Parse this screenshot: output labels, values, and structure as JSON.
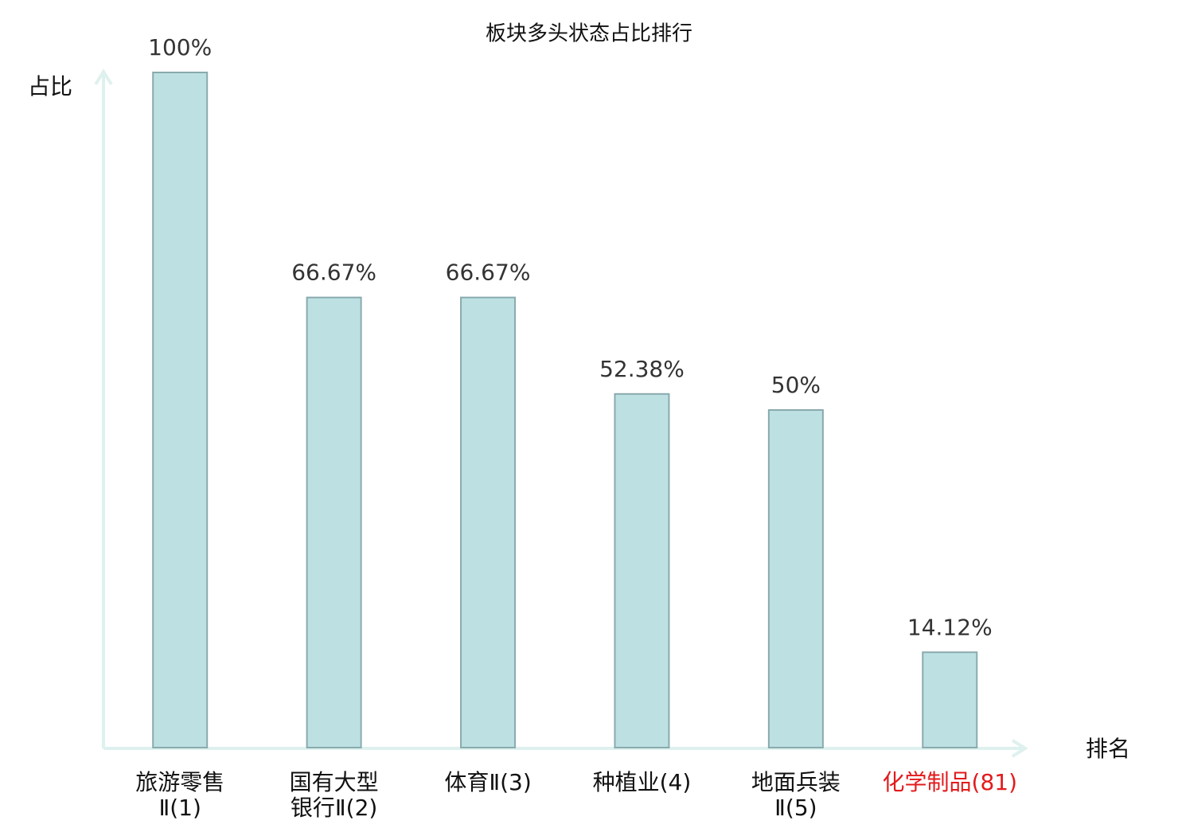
{
  "chart_data": {
    "type": "bar",
    "title": "板块多头状态占比排行",
    "y_label": "占比",
    "x_label": "排名",
    "categories": [
      "旅游零售\nⅡ(1)",
      "国有大型\n银行Ⅱ(2)",
      "体育Ⅱ(3)",
      "种植业(4)",
      "地面兵装\nⅡ(5)",
      "化学制品(81)"
    ],
    "category_colors": [
      "#111111",
      "#111111",
      "#111111",
      "#111111",
      "#111111",
      "#e31a1c"
    ],
    "values": [
      100,
      66.67,
      66.67,
      52.38,
      50,
      14.12
    ],
    "value_labels": [
      "100%",
      "66.67%",
      "66.67%",
      "52.38%",
      "50%",
      "14.12%"
    ],
    "color": "#bde0e3",
    "edge_color": "#8aaaae",
    "ylim": [
      0,
      100
    ]
  }
}
